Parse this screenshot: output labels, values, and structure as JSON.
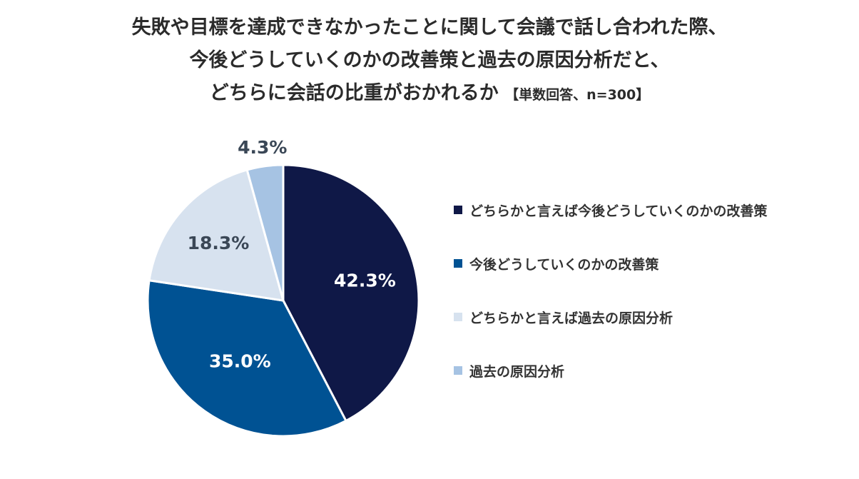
{
  "title": {
    "line1": "失敗や目標を達成できなかったことに関して会議で話し合われた際、",
    "line2": "今後どうしていくのかの改善策と過去の原因分析だと、",
    "line3": "どちらに会話の比重がおかれるか",
    "note": "【単数回答、n=300】"
  },
  "chart_data": {
    "type": "pie",
    "title": "失敗や目標を達成できなかったことに関して会議で話し合われた際、今後どうしていくのかの改善策と過去の原因分析だと、どちらに会話の比重がおかれるか",
    "subtitle": "【単数回答、n=300】",
    "legend_position": "right",
    "slices": [
      {
        "label": "どちらかと言えば今後どうしていくのかの改善策",
        "value": 42.3,
        "display": "42.3%",
        "color": "#0f1847"
      },
      {
        "label": "今後どうしていくのかの改善策",
        "value": 35.0,
        "display": "35.0%",
        "color": "#005293"
      },
      {
        "label": "どちらかと言えば過去の原因分析",
        "value": 18.3,
        "display": "18.3%",
        "color": "#d7e2ef"
      },
      {
        "label": "過去の原因分析",
        "value": 4.3,
        "display": "4.3%",
        "color": "#a6c3e3"
      }
    ]
  }
}
